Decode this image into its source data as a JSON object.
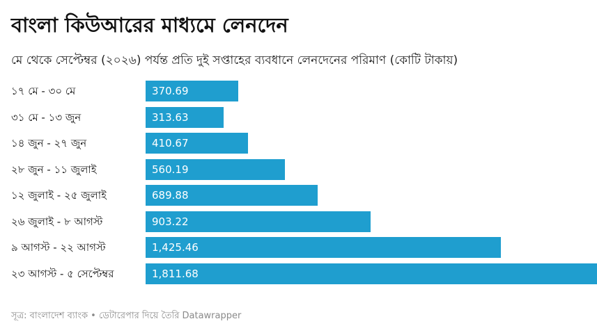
{
  "title": "বাংলা কিউআরের মাধ্যমে লেনদেন",
  "subtitle": "মে থেকে সেপ্টেম্বর (২০২৬) পর্যন্ত প্রতি দুই সপ্তাহের ব্যবধানে লেনদেনের পরিমাণ (কোটি টাকায়)",
  "footer": "সূত্র: বাংলাদেশ ব্যাংক • ডেটারেপার দিয়ে তৈরি Datawrapper",
  "colors": {
    "bar": "#1f9ecf",
    "value_text": "#ffffff",
    "footer_text": "#8a8a8a"
  },
  "chart_data": {
    "type": "bar",
    "orientation": "horizontal",
    "title": "বাংলা কিউআরের মাধ্যমে লেনদেন",
    "subtitle": "মে থেকে সেপ্টেম্বর (২০২৬) পর্যন্ত প্রতি দুই সপ্তাহের ব্যবধানে লেনদেনের পরিমাণ (কোটি টাকায়)",
    "categories": [
      "১৭ মে - ৩০ মে",
      "৩১ মে - ১৩ জুন",
      "১৪ জুন - ২৭ জুন",
      "২৮ জুন - ১১ জুলাই",
      "১২ জুলাই - ২৫ জুলাই",
      "২৬ জুলাই - ৮ আগস্ট",
      "৯ আগস্ট - ২২ আগস্ট",
      "২৩ আগস্ট - ৫ সেপ্টেম্বর"
    ],
    "values": [
      370.69,
      313.63,
      410.67,
      560.19,
      689.88,
      903.22,
      1425.46,
      1811.68
    ],
    "value_labels": [
      "370.69",
      "313.63",
      "410.67",
      "560.19",
      "689.88",
      "903.22",
      "1,425.46",
      "1,811.68"
    ],
    "xlim": [
      0,
      1811.68
    ],
    "grid": false,
    "legend": "none"
  }
}
